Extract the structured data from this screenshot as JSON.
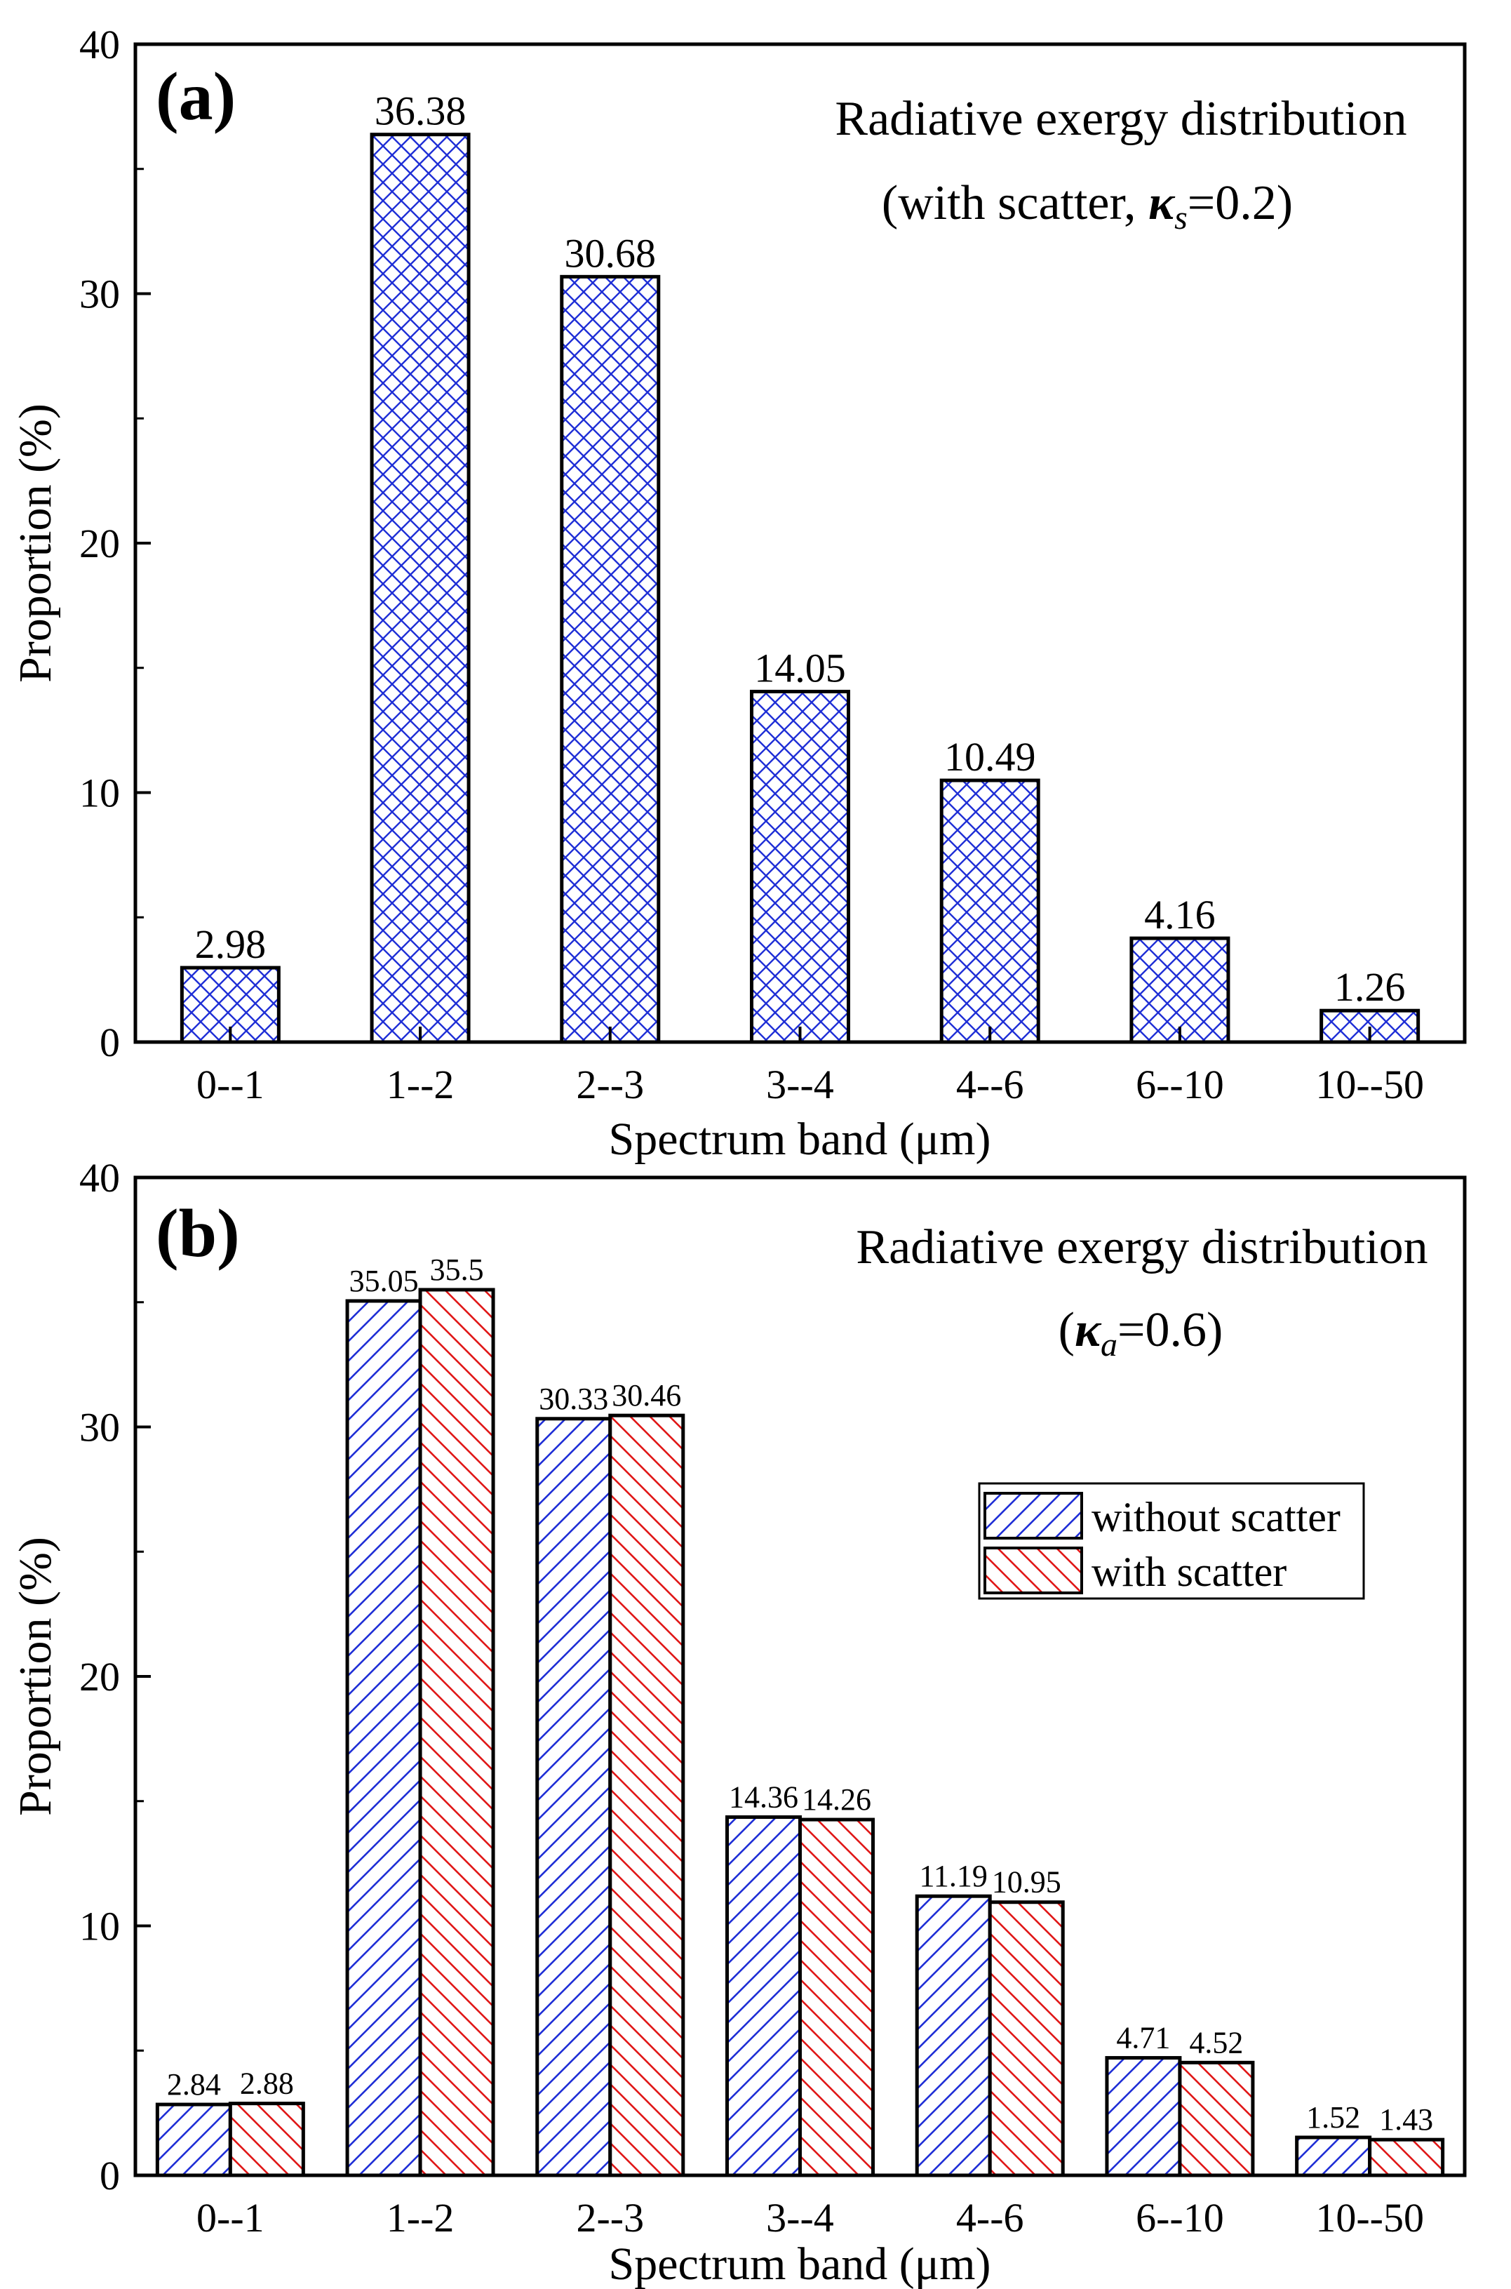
{
  "chart_data": [
    {
      "type": "bar",
      "panel_label": "(a)",
      "title_line1": "Radiative exergy distribution",
      "title_line2_pre": "(with scatter, ",
      "title_line2_sym": "κ",
      "title_line2_sub": "s",
      "title_line2_post": "=0.2)",
      "xlabel": "Spectrum band (μm)",
      "ylabel": "Proportion (%)",
      "ylim": [
        0,
        40
      ],
      "yticks": [
        "0",
        "10",
        "20",
        "30",
        "40"
      ],
      "categories": [
        "0--1",
        "1--2",
        "2--3",
        "3--4",
        "4--6",
        "6--10",
        "10--50"
      ],
      "series": [
        {
          "values": [
            2.98,
            36.38,
            30.68,
            14.05,
            10.49,
            4.16,
            1.26
          ],
          "labels": [
            "2.98",
            "36.38",
            "30.68",
            "14.05",
            "10.49",
            "4.16",
            "1.26"
          ],
          "color": "#1f2fd6",
          "hatch": "crosshatch"
        }
      ],
      "grid": false
    },
    {
      "type": "bar",
      "panel_label": "(b)",
      "title_line1": "Radiative exergy distribution",
      "title_line2_pre": "(",
      "title_line2_sym": "κ",
      "title_line2_sub": "a",
      "title_line2_post": "=0.6)",
      "xlabel": "Spectrum band (μm)",
      "ylabel": "Proportion (%)",
      "ylim": [
        0,
        40
      ],
      "yticks": [
        "0",
        "10",
        "20",
        "30",
        "40"
      ],
      "categories": [
        "0--1",
        "1--2",
        "2--3",
        "3--4",
        "4--6",
        "6--10",
        "10--50"
      ],
      "series": [
        {
          "name": "without scatter",
          "values": [
            2.84,
            35.05,
            30.33,
            14.36,
            11.19,
            4.71,
            1.52
          ],
          "labels": [
            "2.84",
            "35.05",
            "30.33",
            "14.36",
            "11.19",
            "4.71",
            "1.52"
          ],
          "color": "#1f2fd6",
          "hatch": "forward-diagonal"
        },
        {
          "name": "with scatter",
          "values": [
            2.88,
            35.5,
            30.46,
            14.26,
            10.95,
            4.52,
            1.43
          ],
          "labels": [
            "2.88",
            "35.5",
            "30.46",
            "14.26",
            "10.95",
            "4.52",
            "1.43"
          ],
          "color": "#e01818",
          "hatch": "back-diagonal"
        }
      ],
      "legend": "upper-right",
      "grid": false
    }
  ]
}
